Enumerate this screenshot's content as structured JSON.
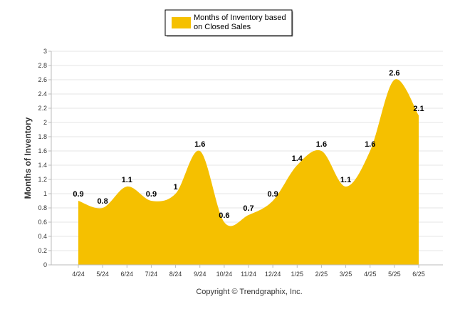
{
  "chart_data": {
    "type": "area",
    "categories": [
      "4/24",
      "5/24",
      "6/24",
      "7/24",
      "8/24",
      "9/24",
      "10/24",
      "11/24",
      "12/24",
      "1/25",
      "2/25",
      "3/25",
      "4/25",
      "5/25",
      "6/25"
    ],
    "series": [
      {
        "name": "Months of Inventory based on Closed Sales",
        "values": [
          0.9,
          0.8,
          1.1,
          0.9,
          1,
          1.6,
          0.6,
          0.7,
          0.9,
          1.4,
          1.6,
          1.1,
          1.6,
          2.6,
          2.1
        ],
        "labels": [
          "0.9",
          "0.8",
          "1.1",
          "0.9",
          "1",
          "1.6",
          "0.6",
          "0.7",
          "0.9",
          "1.4",
          "1.6",
          "1.1",
          "1.6",
          "2.6",
          "2.1"
        ],
        "color": "#F5C000"
      }
    ],
    "legend": {
      "line1": "Months of Inventory based",
      "line2": "on Closed Sales",
      "placement": "top-center"
    },
    "ylabel": "Months of Inventory",
    "ylim": [
      0,
      3
    ],
    "yticks": [
      "0",
      "0.2",
      "0.4",
      "0.6",
      "0.8",
      "1",
      "1.2",
      "1.4",
      "1.6",
      "1.8",
      "2",
      "2.2",
      "2.4",
      "2.6",
      "2.8",
      "3"
    ],
    "grid": true
  },
  "footer": {
    "copyright": "Copyright © Trendgraphix, Inc."
  }
}
